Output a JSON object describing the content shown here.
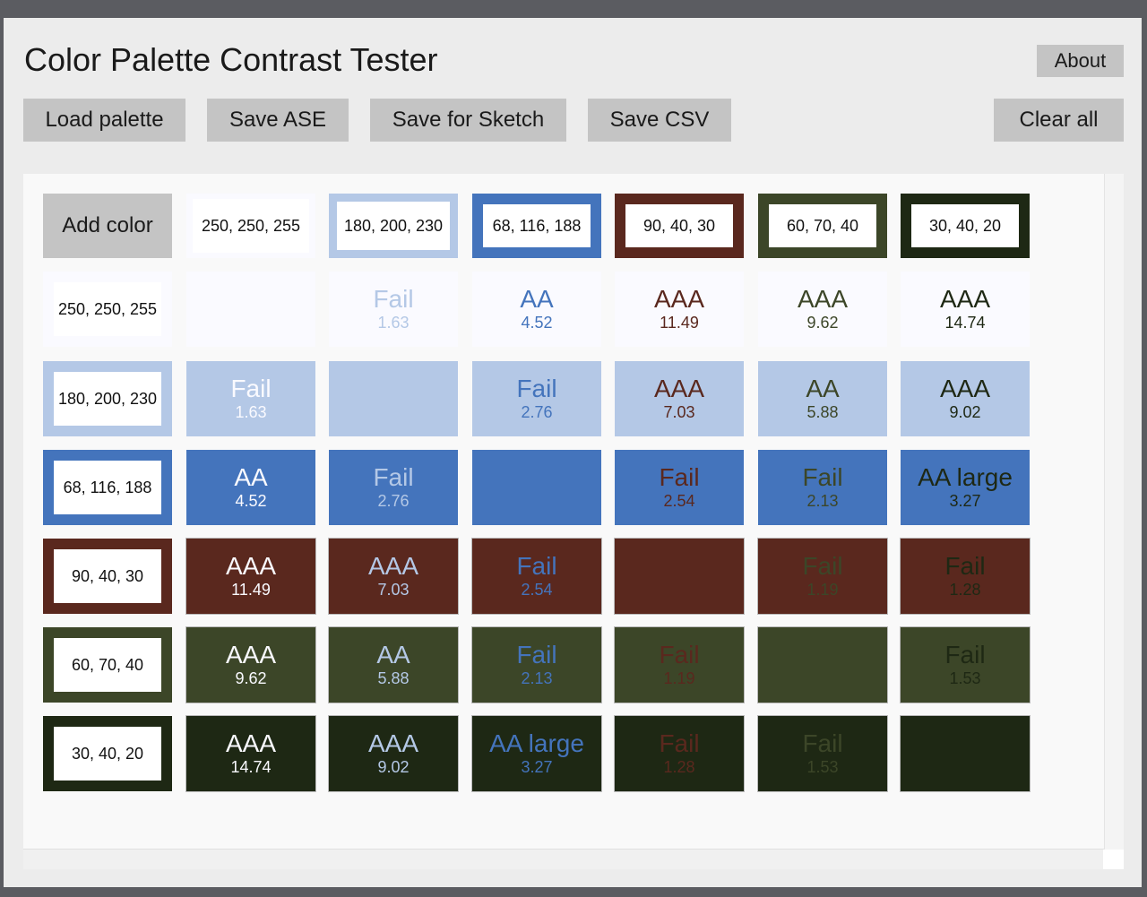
{
  "app": {
    "title": "Color Palette Contrast Tester"
  },
  "toolbar": {
    "about": "About",
    "load": "Load palette",
    "save_ase": "Save ASE",
    "save_sketch": "Save for Sketch",
    "save_csv": "Save CSV",
    "clear": "Clear all"
  },
  "grid": {
    "add_color": "Add color",
    "colors": [
      {
        "label": "250, 250, 255",
        "hex": "#fafaff"
      },
      {
        "label": "180, 200, 230",
        "hex": "#b4c8e6"
      },
      {
        "label": "68, 116, 188",
        "hex": "#4474bc"
      },
      {
        "label": "90, 40, 30",
        "hex": "#5a281e"
      },
      {
        "label": "60, 70, 40",
        "hex": "#3c4628"
      },
      {
        "label": "30, 40, 20",
        "hex": "#1e2814"
      }
    ],
    "results": [
      [
        null,
        {
          "level": "Fail",
          "ratio": "1.63"
        },
        {
          "level": "AA",
          "ratio": "4.52"
        },
        {
          "level": "AAA",
          "ratio": "11.49"
        },
        {
          "level": "AAA",
          "ratio": "9.62"
        },
        {
          "level": "AAA",
          "ratio": "14.74"
        }
      ],
      [
        {
          "level": "Fail",
          "ratio": "1.63"
        },
        null,
        {
          "level": "Fail",
          "ratio": "2.76"
        },
        {
          "level": "AAA",
          "ratio": "7.03"
        },
        {
          "level": "AA",
          "ratio": "5.88"
        },
        {
          "level": "AAA",
          "ratio": "9.02"
        }
      ],
      [
        {
          "level": "AA",
          "ratio": "4.52"
        },
        {
          "level": "Fail",
          "ratio": "2.76"
        },
        null,
        {
          "level": "Fail",
          "ratio": "2.54"
        },
        {
          "level": "Fail",
          "ratio": "2.13"
        },
        {
          "level": "AA large",
          "ratio": "3.27"
        }
      ],
      [
        {
          "level": "AAA",
          "ratio": "11.49"
        },
        {
          "level": "AAA",
          "ratio": "7.03"
        },
        {
          "level": "Fail",
          "ratio": "2.54"
        },
        null,
        {
          "level": "Fail",
          "ratio": "1.19"
        },
        {
          "level": "Fail",
          "ratio": "1.28"
        }
      ],
      [
        {
          "level": "AAA",
          "ratio": "9.62"
        },
        {
          "level": "AA",
          "ratio": "5.88"
        },
        {
          "level": "Fail",
          "ratio": "2.13"
        },
        {
          "level": "Fail",
          "ratio": "1.19"
        },
        null,
        {
          "level": "Fail",
          "ratio": "1.53"
        }
      ],
      [
        {
          "level": "AAA",
          "ratio": "14.74"
        },
        {
          "level": "AAA",
          "ratio": "9.02"
        },
        {
          "level": "AA large",
          "ratio": "3.27"
        },
        {
          "level": "Fail",
          "ratio": "1.28"
        },
        {
          "level": "Fail",
          "ratio": "1.53"
        },
        null
      ]
    ]
  }
}
